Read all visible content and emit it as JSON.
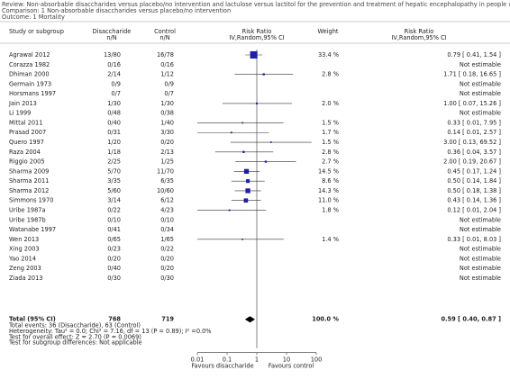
{
  "header": {
    "review": "Review:  Non-absorbable disaccharides versus placebo/no intervention and lactulose versus lactitol for the prevention and treatment of hepatic encephalopathy in people w",
    "comparison": "Comparison:  1 Non-absorbable disaccharides versus placebo/no intervention",
    "outcome": "Outcome:  1 Mortality"
  },
  "chart_data": {
    "type": "forest",
    "columns": {
      "study": "Study or subgroup",
      "treatment": "Disaccharide",
      "treatment_sub": "n/N",
      "control": "Control",
      "control_sub": "n/N",
      "plot": "Risk Ratio",
      "plot_sub": "IV,Random,95% CI",
      "weight": "Weight",
      "estimate": "Risk Ratio",
      "estimate_sub": "IV,Random,95% CI"
    },
    "studies": [
      "Agrawal 2012",
      "Corazza 1982",
      "Dhiman 2000",
      "Germain 1973",
      "Horsmans 1997",
      "Jain 2013",
      "Li 1999",
      "Mittal 2011",
      "Prasad 2007",
      "Quero 1997",
      "Raza 2004",
      "Riggio 2005",
      "Sharma 2009",
      "Sharma 2011",
      "Sharma 2012",
      "Simmons 1970",
      "Uribe 1987a",
      "Uribe 1987b",
      "Watanabe 1997",
      "Wen 2013",
      "Xing 2003",
      "Yao 2014",
      "Zeng 2003",
      "Ziada 2013"
    ],
    "treatment": [
      "13/80",
      "0/16",
      "2/14",
      "0/9",
      "0/7",
      "1/30",
      "0/48",
      "0/40",
      "0/31",
      "1/20",
      "1/18",
      "2/25",
      "5/70",
      "3/35",
      "5/60",
      "3/14",
      "0/22",
      "0/10",
      "0/41",
      "0/65",
      "0/23",
      "0/20",
      "0/40",
      "0/30"
    ],
    "control": [
      "16/78",
      "0/16",
      "1/12",
      "0/9",
      "0/7",
      "1/30",
      "0/38",
      "1/40",
      "3/30",
      "0/20",
      "2/13",
      "1/25",
      "11/70",
      "6/35",
      "10/60",
      "6/12",
      "4/23",
      "0/10",
      "0/34",
      "1/65",
      "0/22",
      "0/20",
      "0/20",
      "0/30"
    ],
    "weights": [
      33.4,
      null,
      2.8,
      null,
      null,
      2.0,
      null,
      1.5,
      1.7,
      1.5,
      2.8,
      2.7,
      14.5,
      8.6,
      14.3,
      11.0,
      1.8,
      null,
      null,
      1.4,
      null,
      null,
      null,
      null
    ],
    "weight_labels": [
      "33.4 %",
      null,
      "2.8 %",
      null,
      null,
      "2.0 %",
      null,
      "1.5 %",
      "1.7 %",
      "1.5 %",
      "2.8 %",
      "2.7 %",
      "14.5 %",
      "8.6 %",
      "14.3 %",
      "11.0 %",
      "1.8 %",
      null,
      null,
      "1.4 %",
      null,
      null,
      null,
      null
    ],
    "estimates": [
      0.79,
      null,
      1.71,
      null,
      null,
      1.0,
      null,
      0.33,
      0.14,
      3.0,
      0.36,
      2.0,
      0.45,
      0.5,
      0.5,
      0.43,
      0.12,
      null,
      null,
      0.33,
      null,
      null,
      null,
      null
    ],
    "lower": [
      0.41,
      null,
      0.18,
      null,
      null,
      0.07,
      null,
      0.01,
      0.01,
      0.13,
      0.04,
      0.19,
      0.17,
      0.14,
      0.18,
      0.14,
      0.01,
      null,
      null,
      0.01,
      null,
      null,
      null,
      null
    ],
    "upper": [
      1.54,
      null,
      16.65,
      null,
      null,
      15.26,
      null,
      7.95,
      2.57,
      69.52,
      3.57,
      20.67,
      1.24,
      1.84,
      1.38,
      1.36,
      2.04,
      null,
      null,
      8.03,
      null,
      null,
      null,
      null
    ],
    "estimate_labels": [
      "0.79 [ 0.41, 1.54 ]",
      "Not estimable",
      "1.71 [ 0.18, 16.65 ]",
      "Not estimable",
      "Not estimable",
      "1.00 [ 0.07, 15.26 ]",
      "Not estimable",
      "0.33 [ 0.01, 7.95 ]",
      "0.14 [ 0.01, 2.57 ]",
      "3.00 [ 0.13, 69.52 ]",
      "0.36 [ 0.04, 3.57 ]",
      "2.00 [ 0.19, 20.67 ]",
      "0.45 [ 0.17, 1.24 ]",
      "0.50 [ 0.14, 1.84 ]",
      "0.50 [ 0.18, 1.38 ]",
      "0.43 [ 0.14, 1.36 ]",
      "0.12 [ 0.01, 2.04 ]",
      "Not estimable",
      "Not estimable",
      "0.33 [ 0.01, 8.03 ]",
      "Not estimable",
      "Not estimable",
      "Not estimable",
      "Not estimable"
    ],
    "total": {
      "label": "Total (95% CI)",
      "treatment": "768",
      "control": "719",
      "weight": 100.0,
      "weight_label": "100.0 %",
      "estimate": 0.59,
      "lower": 0.4,
      "upper": 0.87,
      "estimate_label": "0.59 [ 0.40, 0.87 ]"
    },
    "footnotes": [
      "Total events: 36 (Disaccharide), 63 (Control)",
      "Heterogeneity: Tau² = 0.0; Chi² = 7.16, df = 13 (P = 0.89); I² =0.0%",
      "Test for overall effect: Z = 2.70 (P = 0.0069)",
      "Test for subgroup differences: Not applicable"
    ],
    "xlim": [
      0.01,
      100
    ],
    "xticks": [
      0.01,
      0.1,
      1,
      10,
      100
    ],
    "log_x": true,
    "favours_left": "Favours disaccharide",
    "favours_right": "Favours control",
    "color": "#1f1fa8"
  }
}
